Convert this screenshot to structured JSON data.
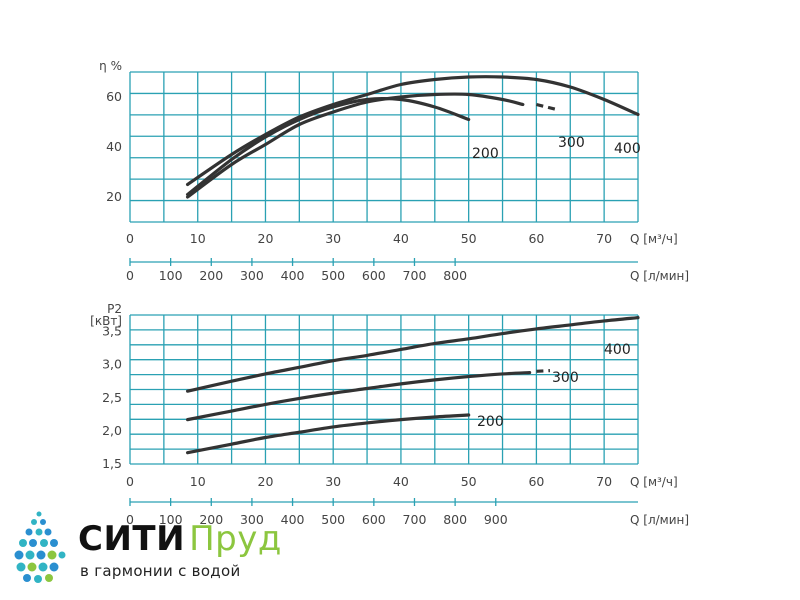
{
  "colors": {
    "grid": "#2aa1b3",
    "curve": "#333333",
    "text": "#444444",
    "brand_dark": "#111111",
    "brand_green": "#8cc63f",
    "brand_blue": "#2a8fd0",
    "brand_teal": "#31b4c4"
  },
  "chart_data": [
    {
      "type": "line",
      "ylabel": "η %",
      "xlabel": "Q [м³/ч]",
      "xlabel2": "Q [л/мин]",
      "ylim": [
        10,
        70
      ],
      "yticks": [
        20,
        40,
        60
      ],
      "xlim": [
        0,
        75
      ],
      "xticks": [
        0,
        10,
        20,
        30,
        40,
        50,
        60,
        70
      ],
      "xticks2": [
        100,
        200,
        300,
        400,
        500,
        600,
        700,
        800
      ],
      "grid": true,
      "series": [
        {
          "name": "200",
          "x": [
            8.5,
            15,
            20,
            25,
            30,
            35,
            40,
            45,
            50
          ],
          "y": [
            21,
            35,
            44,
            51,
            56,
            59,
            59,
            56,
            51
          ]
        },
        {
          "name": "300",
          "x": [
            8.5,
            15,
            20,
            25,
            30,
            35,
            40,
            45,
            50,
            55,
            58
          ],
          "y": [
            20,
            33,
            41,
            49,
            54,
            58,
            60,
            61,
            61,
            59,
            57
          ],
          "dashed_tail": [
            [
              60,
              57
            ],
            [
              63,
              55
            ]
          ]
        },
        {
          "name": "400",
          "x": [
            8.5,
            15,
            20,
            25,
            30,
            35,
            40,
            45,
            50,
            55,
            60,
            65,
            70,
            75
          ],
          "y": [
            25,
            37,
            45,
            52,
            57,
            61,
            65,
            67,
            68,
            68,
            67,
            64,
            59,
            53
          ]
        }
      ]
    },
    {
      "type": "line",
      "ylabel": "P2",
      "ylabel2": "[кВт]",
      "xlabel": "Q [м³/ч]",
      "xlabel2": "Q [л/мин]",
      "ylim": [
        1.5,
        3.75
      ],
      "yticks": [
        "1,5",
        "2,0",
        "2,5",
        "3,0",
        "3,5"
      ],
      "ytick_values": [
        1.5,
        2.0,
        2.5,
        3.0,
        3.5
      ],
      "xlim": [
        0,
        75
      ],
      "xticks": [
        0,
        10,
        20,
        30,
        40,
        50,
        60,
        70
      ],
      "xticks2": [
        100,
        200,
        300,
        400,
        500,
        600,
        700,
        800,
        900
      ],
      "grid": true,
      "series": [
        {
          "name": "200",
          "x": [
            8.5,
            15,
            20,
            25,
            30,
            35,
            40,
            45,
            50
          ],
          "y": [
            1.67,
            1.8,
            1.9,
            1.98,
            2.06,
            2.12,
            2.17,
            2.21,
            2.24
          ]
        },
        {
          "name": "300",
          "x": [
            8.5,
            15,
            20,
            25,
            30,
            35,
            40,
            45,
            50,
            55,
            59
          ],
          "y": [
            2.17,
            2.3,
            2.4,
            2.49,
            2.57,
            2.64,
            2.71,
            2.77,
            2.82,
            2.86,
            2.88
          ],
          "dashed_tail": [
            [
              60,
              2.9
            ],
            [
              62,
              2.91
            ]
          ]
        },
        {
          "name": "400",
          "x": [
            8.5,
            15,
            20,
            25,
            30,
            35,
            40,
            45,
            50,
            55,
            60,
            65,
            70,
            75
          ],
          "y": [
            2.6,
            2.75,
            2.86,
            2.96,
            3.06,
            3.14,
            3.23,
            3.32,
            3.39,
            3.47,
            3.54,
            3.6,
            3.66,
            3.71
          ]
        }
      ]
    }
  ],
  "logo": {
    "name_part1": "СИТИ",
    "name_part2": "Пруд",
    "tagline": "в гармонии с водой"
  }
}
